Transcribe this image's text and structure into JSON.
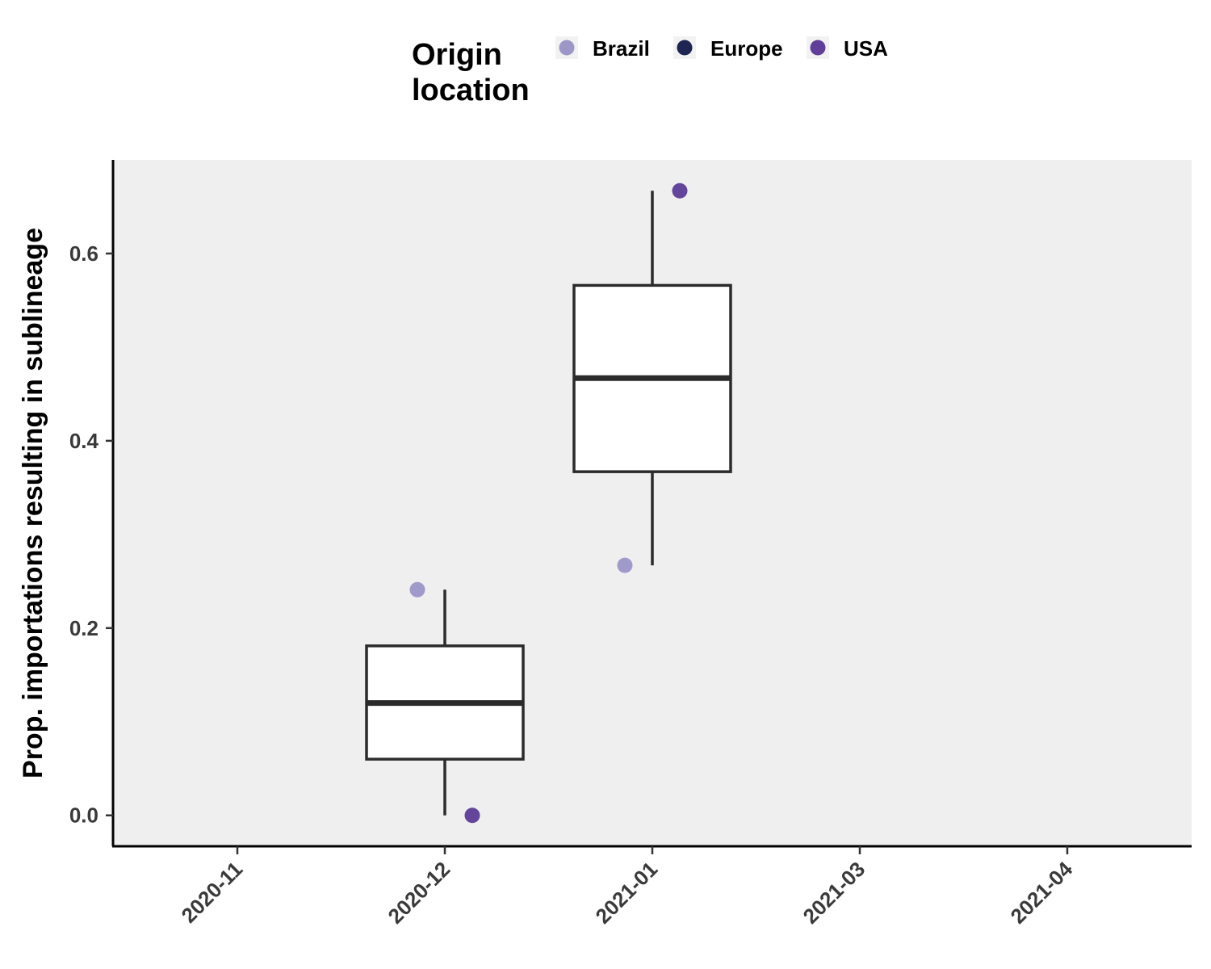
{
  "chart_data": {
    "type": "box",
    "ylabel": "Prop. importations resulting in sublineage",
    "ylim": [
      -0.033,
      0.7
    ],
    "yticks": [
      0.0,
      0.2,
      0.4,
      0.6
    ],
    "ytick_labels": [
      "0.0",
      "0.2",
      "0.4",
      "0.6"
    ],
    "categories": [
      "2020-11",
      "2020-12",
      "2021-01",
      "2021-03",
      "2021-04"
    ],
    "legend": {
      "title_lines": [
        "Origin",
        "location"
      ],
      "placement": "top",
      "entries": [
        {
          "label": "Brazil",
          "color": "#9d97c8"
        },
        {
          "label": "Europe",
          "color": "#1e2552"
        },
        {
          "label": "USA",
          "color": "#5f3f99"
        }
      ]
    },
    "boxes": [
      {
        "category": "2020-12",
        "min": 0.0,
        "q1": 0.06,
        "median": 0.12,
        "q3": 0.181,
        "max": 0.241
      },
      {
        "category": "2021-01",
        "min": 0.267,
        "q1": 0.367,
        "median": 0.467,
        "q3": 0.566,
        "max": 0.667
      }
    ],
    "points": [
      {
        "category": "2020-12",
        "origin": "Brazil",
        "y": 0.241
      },
      {
        "category": "2020-12",
        "origin": "USA",
        "y": 0.0
      },
      {
        "category": "2021-01",
        "origin": "Brazil",
        "y": 0.267
      },
      {
        "category": "2021-01",
        "origin": "USA",
        "y": 0.667
      }
    ],
    "panel_color": "#efeff0",
    "box_stroke": "#2b2b2b",
    "grid": false
  }
}
